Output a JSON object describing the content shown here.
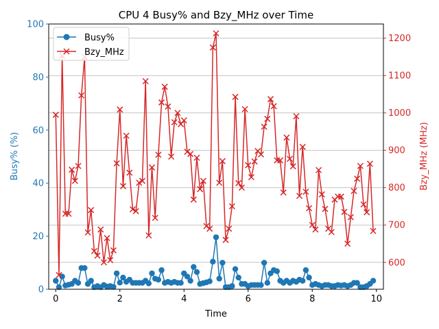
{
  "chart_data": {
    "type": "line",
    "title": "CPU 4 Busy% and Bzy_MHz over Time",
    "xlabel": "Time",
    "ylabel_left": "Busy% (%)",
    "ylabel_right": "Bzy_MHz (MHz)",
    "xlim": [
      -0.22,
      10.22
    ],
    "ylim_left": [
      0,
      100
    ],
    "ylim_right": [
      528,
      1238
    ],
    "x_ticks": [
      0,
      2,
      4,
      6,
      8,
      10
    ],
    "y_left_ticks": [
      0,
      20,
      40,
      60,
      80,
      100
    ],
    "y_right_ticks": [
      600,
      700,
      800,
      900,
      1000,
      1100,
      1200
    ],
    "grid": "right axis horizontal",
    "legend": {
      "position": "top-left"
    },
    "colors": {
      "busy": "#1f77b4",
      "mhz": "#d62728",
      "grid": "#b0b0b0",
      "frame": "#000000"
    },
    "x": [
      0.0,
      0.1,
      0.2,
      0.3,
      0.4,
      0.5,
      0.6,
      0.7,
      0.8,
      0.9,
      1.0,
      1.1,
      1.2,
      1.3,
      1.4,
      1.5,
      1.6,
      1.7,
      1.8,
      1.9,
      2.0,
      2.1,
      2.2,
      2.3,
      2.4,
      2.5,
      2.6,
      2.7,
      2.8,
      2.9,
      3.0,
      3.1,
      3.2,
      3.3,
      3.4,
      3.5,
      3.6,
      3.7,
      3.8,
      3.9,
      4.0,
      4.1,
      4.2,
      4.3,
      4.4,
      4.5,
      4.6,
      4.7,
      4.8,
      4.9,
      5.0,
      5.1,
      5.2,
      5.3,
      5.4,
      5.5,
      5.6,
      5.7,
      5.8,
      5.9,
      6.0,
      6.1,
      6.2,
      6.3,
      6.4,
      6.5,
      6.6,
      6.7,
      6.8,
      6.9,
      7.0,
      7.1,
      7.2,
      7.3,
      7.4,
      7.5,
      7.6,
      7.7,
      7.8,
      7.9,
      8.0,
      8.1,
      8.2,
      8.3,
      8.4,
      8.5,
      8.6,
      8.7,
      8.8,
      8.9,
      9.0,
      9.1,
      9.2,
      9.3,
      9.4,
      9.5,
      9.6,
      9.7,
      9.8,
      9.9
    ],
    "series": [
      {
        "name": "Busy%",
        "axis": "left",
        "marker": "circle",
        "values": [
          3.2,
          0.8,
          4.8,
          1.4,
          1.7,
          2.0,
          3.2,
          2.4,
          8.0,
          8.0,
          2.0,
          3.2,
          0.8,
          1.2,
          0.8,
          1.6,
          1.0,
          1.2,
          0.9,
          6.0,
          2.5,
          4.4,
          2.8,
          3.6,
          2.4,
          2.4,
          2.4,
          2.4,
          3.2,
          2.2,
          6.0,
          4.0,
          3.6,
          7.2,
          2.4,
          2.8,
          2.4,
          2.8,
          2.4,
          2.4,
          6.0,
          4.8,
          3.2,
          8.4,
          6.5,
          2.0,
          2.3,
          2.6,
          3.0,
          10.4,
          19.6,
          4.0,
          10.0,
          0.8,
          0.8,
          1.2,
          7.6,
          4.4,
          2.0,
          2.0,
          1.2,
          1.6,
          1.6,
          1.6,
          1.6,
          10.0,
          2.4,
          6.0,
          7.2,
          6.8,
          3.2,
          2.4,
          3.2,
          2.4,
          3.2,
          2.8,
          3.6,
          3.2,
          7.2,
          4.4,
          1.6,
          2.0,
          1.6,
          1.2,
          1.6,
          1.6,
          1.2,
          1.2,
          1.6,
          1.4,
          1.6,
          1.2,
          1.6,
          2.4,
          2.4,
          0.8,
          0.8,
          1.2,
          2.0,
          3.2
        ]
      },
      {
        "name": "Bzy_MHz",
        "axis": "right",
        "marker": "x",
        "values": [
          995,
          566,
          1153,
          730,
          730,
          848,
          818,
          858,
          1047,
          1150,
          680,
          740,
          630,
          618,
          688,
          600,
          665,
          606,
          632,
          865,
          1009,
          804,
          939,
          840,
          742,
          737,
          813,
          818,
          1085,
          672,
          854,
          719,
          888,
          1028,
          1070,
          1017,
          883,
          975,
          1000,
          970,
          980,
          896,
          890,
          768,
          880,
          796,
          818,
          697,
          690,
          1175,
          1213,
          813,
          871,
          660,
          690,
          750,
          1043,
          812,
          800,
          1010,
          860,
          828,
          870,
          898,
          889,
          963,
          984,
          1037,
          1018,
          873,
          873,
          787,
          934,
          877,
          857,
          991,
          778,
          909,
          789,
          745,
          700,
          688,
          847,
          782,
          743,
          690,
          681,
          768,
          776,
          776,
          735,
          650,
          721,
          791,
          824,
          858,
          755,
          734,
          864,
          684
        ]
      }
    ]
  }
}
